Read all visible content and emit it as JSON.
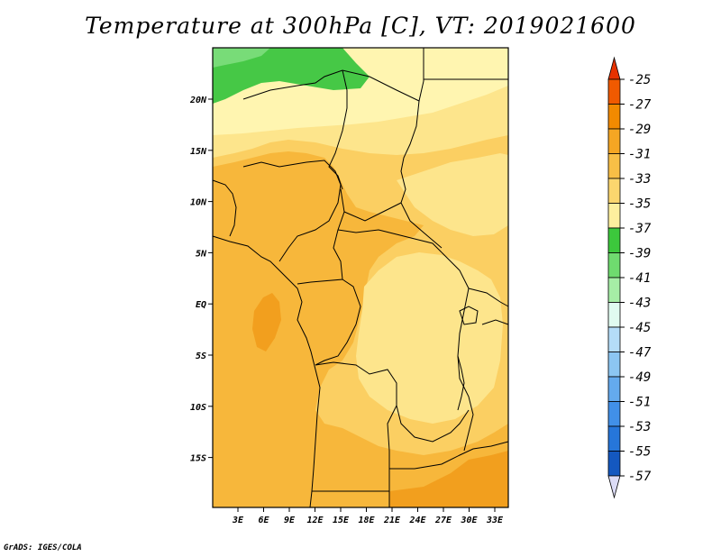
{
  "title": "Temperature at 300hPa [C], VT: 2019021600",
  "footer": "GrADS: IGES/COLA",
  "map": {
    "lon_labels": [
      "3E",
      "6E",
      "9E",
      "12E",
      "15E",
      "18E",
      "21E",
      "24E",
      "27E",
      "30E",
      "33E"
    ],
    "lat_labels": [
      "20N",
      "15N",
      "10N",
      "5N",
      "EQ",
      "5S",
      "10S",
      "15S"
    ],
    "shading_colors": {
      "very_light_yellow": "#fff5b0",
      "light_yellow": "#fde58c",
      "yellow_orange": "#fbcf62",
      "light_orange": "#f7b73b",
      "orange": "#f29f1e",
      "dark_orange": "#ef8a0e",
      "green_dark": "#46c846",
      "green_mid": "#78dc78",
      "green_light": "#a8eca8"
    }
  },
  "colorbar": {
    "labels": [
      "-25",
      "-27",
      "-29",
      "-31",
      "-33",
      "-35",
      "-37",
      "-39",
      "-41",
      "-43",
      "-45",
      "-47",
      "-49",
      "-51",
      "-53",
      "-55",
      "-57"
    ],
    "colors": [
      "#f05a00",
      "#f28a00",
      "#f5a623",
      "#f8bf46",
      "#fbd66e",
      "#fdef9e",
      "#3cc83c",
      "#6fdb6f",
      "#a6eea6",
      "#e0fbf0",
      "#b4dcf8",
      "#8cc6f2",
      "#64aaee",
      "#4190e8",
      "#2676da",
      "#1458c0",
      "#0f2a8a"
    ],
    "top_arrow_color": "#e63200",
    "bottom_arrow_color": "#dcdcf6"
  }
}
